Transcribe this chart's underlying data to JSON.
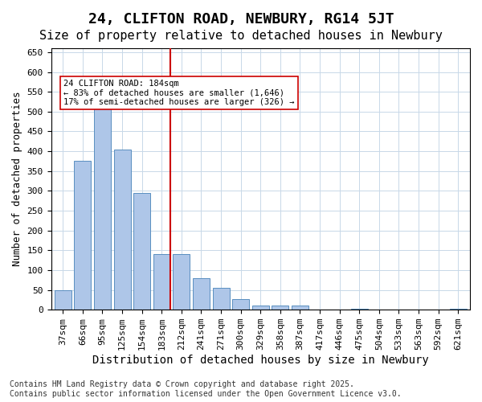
{
  "title": "24, CLIFTON ROAD, NEWBURY, RG14 5JT",
  "subtitle": "Size of property relative to detached houses in Newbury",
  "xlabel": "Distribution of detached houses by size in Newbury",
  "ylabel": "Number of detached properties",
  "bar_labels": [
    "37sqm",
    "66sqm",
    "95sqm",
    "125sqm",
    "154sqm",
    "183sqm",
    "212sqm",
    "241sqm",
    "271sqm",
    "300sqm",
    "329sqm",
    "358sqm",
    "387sqm",
    "417sqm",
    "446sqm",
    "475sqm",
    "504sqm",
    "533sqm",
    "563sqm",
    "592sqm",
    "621sqm"
  ],
  "bar_values": [
    50,
    375,
    520,
    405,
    295,
    140,
    140,
    80,
    55,
    27,
    10,
    10,
    11,
    0,
    0,
    3,
    0,
    0,
    0,
    0,
    2
  ],
  "bar_color": "#aec6e8",
  "bar_edge_color": "#5a8fc0",
  "vline_x": 5,
  "vline_color": "#cc0000",
  "annotation_text": "24 CLIFTON ROAD: 184sqm\n← 83% of detached houses are smaller (1,646)\n17% of semi-detached houses are larger (326) →",
  "annotation_box_color": "#ffffff",
  "annotation_box_edge": "#cc0000",
  "ylim": [
    0,
    660
  ],
  "yticks": [
    0,
    50,
    100,
    150,
    200,
    250,
    300,
    350,
    400,
    450,
    500,
    550,
    600,
    650
  ],
  "bg_color": "#ffffff",
  "grid_color": "#c8d8e8",
  "footer": "Contains HM Land Registry data © Crown copyright and database right 2025.\nContains public sector information licensed under the Open Government Licence v3.0.",
  "title_fontsize": 13,
  "subtitle_fontsize": 11,
  "xlabel_fontsize": 10,
  "ylabel_fontsize": 9,
  "tick_fontsize": 8,
  "footer_fontsize": 7
}
